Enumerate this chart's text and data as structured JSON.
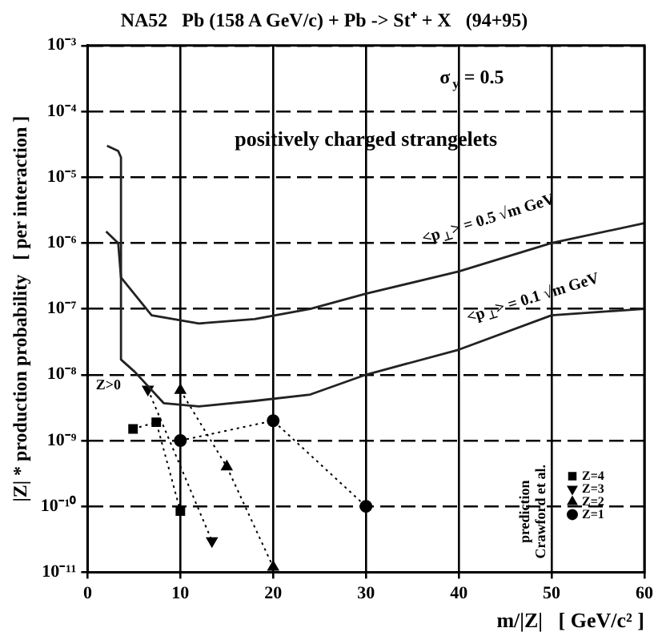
{
  "chart_data": {
    "type": "line",
    "title": "NA52   Pb (158 A GeV/c) + Pb -> St⁺ + X   (94+95)",
    "xlabel": "m/|Z|   [ GeV/c² ]",
    "ylabel": "|Z| * production probability   [ per interaction ]",
    "xlim": [
      0,
      60
    ],
    "xticks": [
      0,
      10,
      20,
      30,
      40,
      50,
      60
    ],
    "ylim": [
      1e-11,
      0.001
    ],
    "yticks": [
      {
        "value": 1e-11,
        "label": "10⁻¹¹"
      },
      {
        "value": 1e-10,
        "label": "10⁻¹⁰"
      },
      {
        "value": 1e-09,
        "label": "10⁻⁹"
      },
      {
        "value": 1e-08,
        "label": "10⁻⁸"
      },
      {
        "value": 1e-07,
        "label": "10⁻⁷"
      },
      {
        "value": 1e-06,
        "label": "10⁻⁶"
      },
      {
        "value": 1e-05,
        "label": "10⁻⁵"
      },
      {
        "value": 0.0001,
        "label": "10⁻⁴"
      },
      {
        "value": 0.001,
        "label": "10⁻³"
      }
    ],
    "log": "y",
    "grid": true,
    "legend": "bottom right",
    "series": [
      {
        "color": "#222222",
        "marker": "none",
        "line_style": "solid",
        "x": [
          2,
          3.3,
          3.6,
          6.9,
          12,
          18,
          24,
          30,
          40,
          50,
          60
        ],
        "values": [
          1.5e-06,
          1e-06,
          3e-07,
          8e-08,
          6e-08,
          7e-08,
          1e-07,
          1.7e-07,
          3.7e-07,
          1e-06,
          2e-06
        ]
      },
      {
        "color": "#222222",
        "marker": "none",
        "line_style": "solid",
        "x": [
          2.1,
          3.3,
          3.6,
          3.6,
          5.1,
          8.2,
          12,
          18,
          24,
          30,
          40,
          50,
          60
        ],
        "values": [
          3e-05,
          2.5e-05,
          2e-05,
          1.7e-08,
          1.1e-08,
          3.7e-09,
          3.3e-09,
          4e-09,
          5e-09,
          1e-08,
          2.4e-08,
          8e-08,
          1e-07
        ]
      },
      {
        "name": "Z=4",
        "color": "#000000",
        "marker": "square",
        "line_style": "dotted",
        "x": [
          4.9,
          7.4,
          10
        ],
        "values": [
          1.5e-09,
          1.9e-09,
          8.5e-11
        ]
      },
      {
        "name": "Z=3",
        "color": "#000000",
        "marker": "triangle-down",
        "line_style": "dotted",
        "x": [
          6.5,
          13.4
        ],
        "values": [
          6e-09,
          3e-11
        ]
      },
      {
        "name": "Z=2",
        "color": "#000000",
        "marker": "triangle",
        "line_style": "dotted",
        "x": [
          10,
          15,
          20
        ],
        "values": [
          5.8e-09,
          4e-10,
          1.2e-11
        ]
      },
      {
        "name": "Z=1",
        "color": "#000000",
        "marker": "circle",
        "line_style": "dotted",
        "x": [
          10,
          20,
          30
        ],
        "values": [
          1e-09,
          2e-09,
          1e-10
        ]
      }
    ],
    "annotations": [
      "σ$_{y}$ = 0.5",
      "positively charged strangelets",
      "<p$_{⊥}$> = 0.5 √m GeV",
      "<p$_{⊥}$> = 0.1 √m GeV",
      "Z>0",
      "prediction Crawford et al."
    ]
  }
}
